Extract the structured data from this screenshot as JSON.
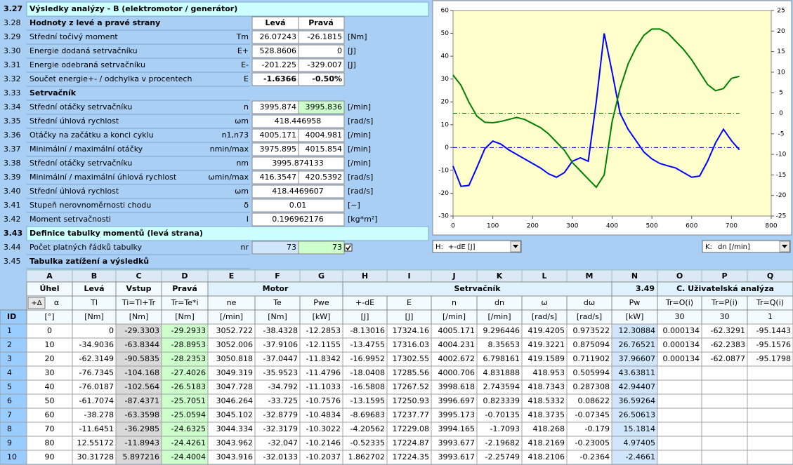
{
  "form": {
    "header": {
      "num": "3.27",
      "title": "Výsledky analýzy - B (elektromotor / generátor)"
    },
    "rows": [
      {
        "num": "3.28",
        "label": "Hodnoty z levé a pravé strany",
        "left": "Levá",
        "right": "Pravá"
      },
      {
        "num": "3.29",
        "label": "Střední točivý moment",
        "symbol": "Tm",
        "left": "26.07243",
        "right": "-26.1815",
        "unit": "[Nm]"
      },
      {
        "num": "3.30",
        "label": "Energie dodaná setrvačníku",
        "symbol": "E+",
        "left": "528.8606",
        "right": "0",
        "unit": "[J]"
      },
      {
        "num": "3.31",
        "label": "Energie odebraná setrvačníku",
        "symbol": "E-",
        "left": "-201.225",
        "right": "-329.007",
        "unit": "[J]"
      },
      {
        "num": "3.32",
        "label": "Součet energie+- / odchylka v procentech",
        "symbol": "E",
        "left": "-1.6366",
        "right": "-0.50%"
      },
      {
        "num": "3.33",
        "label": "Setrvačník"
      },
      {
        "num": "3.34",
        "label": "Střední otáčky setrvačníku",
        "symbol": "n",
        "left": "3995.874",
        "right": "3995.836",
        "unit": "[/min]"
      },
      {
        "num": "3.35",
        "label": "Střední úhlová rychlost",
        "symbol": "ωm",
        "value": "418.446958",
        "unit": "[rad/s]"
      },
      {
        "num": "3.36",
        "label": "Otáčky na začátku a konci cyklu",
        "symbol": "n1,n73",
        "left": "4005.171",
        "right": "4004.981",
        "unit": "[/min]"
      },
      {
        "num": "3.37",
        "label": "Minimální / maximální otáčky",
        "symbol": "nmin/max",
        "left": "3975.895",
        "right": "4015.854",
        "unit": "[/min]"
      },
      {
        "num": "3.38",
        "label": "Střední otáčky setrvačníku",
        "symbol": "nm",
        "value": "3995.874133",
        "unit": "[/min]"
      },
      {
        "num": "3.39",
        "label": "Minimální / maximální úhlová rychlost",
        "symbol": "ωmin/max",
        "left": "416.3547",
        "right": "420.5392",
        "unit": "[rad/s]"
      },
      {
        "num": "3.40",
        "label": "Střední úhlová rychlost",
        "symbol": "ωm",
        "value": "418.4469607",
        "unit": "[rad/s]"
      },
      {
        "num": "3.41",
        "label": "Stupeň nerovnoměrnosti chodu",
        "symbol": "δ",
        "value": "0.01",
        "unit": "[~]"
      },
      {
        "num": "3.42",
        "label": "Moment setrvačnosti",
        "symbol": "I",
        "value": "0.196962176",
        "unit": "[kg*m²]"
      },
      {
        "num": "3.43",
        "label": "Definice tabulky momentů (levá strana)"
      },
      {
        "num": "3.44",
        "label": "Počet platných řádků tabulky",
        "symbol": "nr",
        "left": "73",
        "right": "73"
      },
      {
        "num": "3.45",
        "label": "Tabulka zatížení a výsledků"
      }
    ]
  },
  "chart_data": {
    "type": "line",
    "x": [
      0,
      20,
      40,
      60,
      80,
      100,
      120,
      140,
      160,
      180,
      200,
      220,
      240,
      260,
      280,
      300,
      320,
      340,
      360,
      380,
      400,
      420,
      440,
      460,
      480,
      500,
      520,
      540,
      560,
      580,
      600,
      620,
      640,
      660,
      680,
      700,
      720
    ],
    "series": [
      {
        "color": "#0000ff",
        "values": [
          -8.1,
          -17,
          -16.6,
          -8.7,
          -0.5,
          2.8,
          1.5,
          -1,
          -3,
          -5,
          -7,
          -9,
          -11.5,
          -13,
          -11,
          -6,
          -4.5,
          -6,
          20,
          50,
          33,
          15,
          8,
          3,
          -2,
          -5,
          -7,
          -8,
          -9,
          -11,
          -13,
          -12.5,
          -6,
          2,
          8,
          3,
          -1
        ]
      },
      {
        "color": "#008000",
        "axis": "y2",
        "values": [
          9.3,
          6.8,
          2.7,
          -0.7,
          -2.2,
          -2.3,
          -2,
          -1.5,
          -1,
          -1.5,
          -2.5,
          -3.5,
          -5,
          -7,
          -9,
          -12,
          -14,
          -16,
          -18,
          -15,
          -2,
          6,
          12,
          16,
          19,
          20.5,
          20.5,
          19.5,
          17.5,
          15.5,
          13,
          10,
          7,
          5.5,
          6,
          8.5,
          9
        ]
      }
    ],
    "hlines": [
      {
        "axis": "y",
        "value": 0,
        "color": "#0000ff"
      },
      {
        "axis": "y2",
        "value": 0,
        "color": "#008000"
      }
    ],
    "xlim": [
      0,
      800
    ],
    "xticks": [
      0,
      100,
      200,
      300,
      400,
      500,
      600,
      700,
      800
    ],
    "ylim": [
      -30,
      60
    ],
    "yticks": [
      -30,
      -20,
      -10,
      0,
      10,
      20,
      30,
      40,
      50,
      60
    ],
    "y2lim": [
      -25,
      25
    ],
    "y2ticks": [
      -25,
      -20,
      -15,
      -10,
      -5,
      0,
      5,
      10,
      15,
      20,
      25
    ]
  },
  "selectors": [
    {
      "key": "H:",
      "value": "+-dE [J]"
    },
    {
      "key": "K:",
      "value": "dn [/min]"
    }
  ],
  "table": {
    "columns": [
      "A",
      "B",
      "C",
      "D",
      "E",
      "F",
      "G",
      "H",
      "I",
      "J",
      "K",
      "L",
      "M",
      "N",
      "O",
      "P",
      "Q"
    ],
    "header1": [
      "Úhel",
      "Levá",
      "Vstup",
      "Pravá",
      "Motor",
      "Setrvačník",
      "3.49",
      "C. Uživatelská analýza"
    ],
    "angle_button": "+Δ",
    "header2": [
      "α",
      "Tl",
      "Ti=Tl+Tr",
      "Tr=Te*i",
      "ne",
      "Te",
      "Pwe",
      "+-dE",
      "E",
      "n",
      "dn",
      "ω",
      "dω",
      "Pw",
      "Tr=O(i)",
      "Tr=P(i)",
      "Tr=Q(i)"
    ],
    "header3": [
      "ID",
      "[°]",
      "[Nm]",
      "[Nm]",
      "[Nm]",
      "[/min]",
      "[Nm]",
      "[kW]",
      "[J]",
      "[J]",
      "[/min]",
      "[/min]",
      "[rad/s]",
      "[rad/s]",
      "[kW]",
      "30",
      "30",
      "1"
    ],
    "rows": [
      [
        "1",
        "0",
        "0",
        "-29.3303",
        "-29.2933",
        "3052.722",
        "-38.4328",
        "-12.2853",
        "-8.13016",
        "17324.16",
        "4005.171",
        "9.296446",
        "419.4205",
        "0.973522",
        "12.30884",
        "0.000134",
        "-62.3291",
        "-95.1443"
      ],
      [
        "2",
        "10",
        "-34.9036",
        "-63.8344",
        "-28.8953",
        "3052.006",
        "-37.9106",
        "-12.1155",
        "-13.4755",
        "17316.03",
        "4004.231",
        "8.35653",
        "419.3221",
        "0.875094",
        "26.76521",
        "0.000134",
        "-62.2383",
        "-95.1576"
      ],
      [
        "3",
        "20",
        "-62.3149",
        "-90.5835",
        "-28.2353",
        "3050.818",
        "-37.0447",
        "-11.8342",
        "-16.9952",
        "17302.55",
        "4002.672",
        "6.798161",
        "419.1589",
        "0.711902",
        "37.96607",
        "0.000134",
        "-62.0877",
        "-95.1798"
      ],
      [
        "4",
        "30",
        "-76.7345",
        "-104.168",
        "-27.4026",
        "3049.319",
        "-35.9523",
        "-11.4796",
        "-18.0408",
        "17285.56",
        "4000.706",
        "4.831888",
        "418.953",
        "0.505994",
        "43.63811"
      ],
      [
        "5",
        "40",
        "-76.0187",
        "-102.564",
        "-26.5183",
        "3047.728",
        "-34.792",
        "-11.1033",
        "-16.5808",
        "17267.52",
        "3998.618",
        "2.743594",
        "418.7343",
        "0.287308",
        "42.94407"
      ],
      [
        "6",
        "50",
        "-61.7074",
        "-87.4371",
        "-25.7051",
        "3046.264",
        "-33.725",
        "-10.7576",
        "-13.1595",
        "17250.93",
        "3996.697",
        "0.823339",
        "418.5332",
        "0.08622",
        "36.59264"
      ],
      [
        "7",
        "60",
        "-38.278",
        "-63.3598",
        "-25.0594",
        "3045.102",
        "-32.8779",
        "-10.4834",
        "-8.69683",
        "17237.77",
        "3995.173",
        "-0.70135",
        "418.3735",
        "-0.07345",
        "26.50613"
      ],
      [
        "8",
        "70",
        "-11.6451",
        "-36.2985",
        "-24.6325",
        "3044.334",
        "-32.3179",
        "-10.3022",
        "-4.20562",
        "17229.08",
        "3994.165",
        "-1.7093",
        "418.268",
        "-0.179",
        "15.1814"
      ],
      [
        "9",
        "80",
        "12.55172",
        "-11.8943",
        "-24.4261",
        "3043.962",
        "-32.047",
        "-10.2146",
        "-0.52335",
        "17224.87",
        "3993.677",
        "-2.19682",
        "418.2169",
        "-0.23005",
        "4.97405"
      ],
      [
        "10",
        "90",
        "30.31728",
        "5.897216",
        "-24.4004",
        "3043.916",
        "-32.0133",
        "-10.2037",
        "1.862702",
        "17224.35",
        "3993.617",
        "-2.25749",
        "418.2106",
        "-0.2364",
        "-2.4661"
      ]
    ]
  }
}
